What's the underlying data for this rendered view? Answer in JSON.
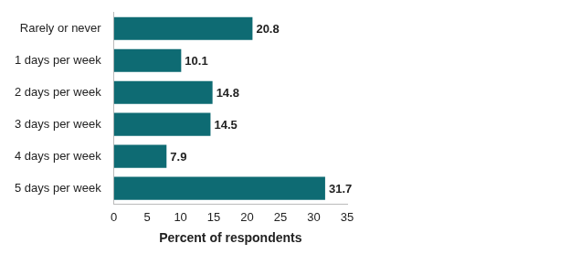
{
  "chart_data": {
    "type": "bar",
    "orientation": "horizontal",
    "categories": [
      "Rarely or never",
      "1 days per week",
      "2 days per week",
      "3 days per week",
      "4 days per week",
      "5 days per week"
    ],
    "values": [
      20.8,
      10.1,
      14.8,
      14.5,
      7.9,
      31.7
    ],
    "color": "#0e6b73",
    "x_label": "Percent of respondents",
    "xlim": [
      0,
      35
    ],
    "xticks": [
      0,
      5,
      10,
      15,
      20,
      25,
      30,
      35
    ],
    "grid": false,
    "data_labels": true
  }
}
